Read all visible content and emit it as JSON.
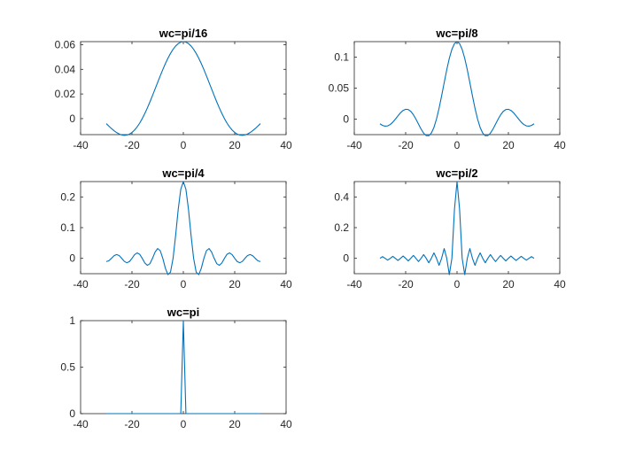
{
  "figure": {
    "background": "#ffffff",
    "line_color": "#0072bd",
    "axis_color": "#262626"
  },
  "chart_data": [
    {
      "type": "line",
      "title": "wc=pi/16",
      "xlabel": "",
      "ylabel": "",
      "xlim": [
        -40,
        40
      ],
      "ylim": [
        -0.013,
        0.0625
      ],
      "xticks": [
        -40,
        -20,
        0,
        20,
        40
      ],
      "xtick_labels": [
        "-40",
        "-20",
        "0",
        "20",
        "40"
      ],
      "yticks": [
        0,
        0.02,
        0.04,
        0.06
      ],
      "ytick_labels": [
        "0",
        "0.02",
        "0.04",
        "0.06"
      ],
      "grid": false,
      "series": [
        {
          "wc_over_pi": 0.0625,
          "x_range": [
            -30,
            30
          ],
          "x_step": 1,
          "color": "#0072bd"
        }
      ]
    },
    {
      "type": "line",
      "title": "wc=pi/8",
      "xlabel": "",
      "ylabel": "",
      "xlim": [
        -40,
        40
      ],
      "ylim": [
        -0.025,
        0.125
      ],
      "xticks": [
        -40,
        -20,
        0,
        20,
        40
      ],
      "xtick_labels": [
        "-40",
        "-20",
        "0",
        "20",
        "40"
      ],
      "yticks": [
        0,
        0.05,
        0.1
      ],
      "ytick_labels": [
        "0",
        "0.05",
        "0.1"
      ],
      "grid": false,
      "series": [
        {
          "wc_over_pi": 0.125,
          "x_range": [
            -30,
            30
          ],
          "x_step": 1,
          "color": "#0072bd"
        }
      ]
    },
    {
      "type": "line",
      "title": "wc=pi/4",
      "xlabel": "",
      "ylabel": "",
      "xlim": [
        -40,
        40
      ],
      "ylim": [
        -0.05,
        0.25
      ],
      "xticks": [
        -40,
        -20,
        0,
        20,
        40
      ],
      "xtick_labels": [
        "-40",
        "-20",
        "0",
        "20",
        "40"
      ],
      "yticks": [
        0,
        0.1,
        0.2
      ],
      "ytick_labels": [
        "0",
        "0.1",
        "0.2"
      ],
      "grid": false,
      "series": [
        {
          "wc_over_pi": 0.25,
          "x_range": [
            -30,
            30
          ],
          "x_step": 1,
          "color": "#0072bd"
        }
      ]
    },
    {
      "type": "line",
      "title": "wc=pi/2",
      "xlabel": "",
      "ylabel": "",
      "xlim": [
        -40,
        40
      ],
      "ylim": [
        -0.1,
        0.5
      ],
      "xticks": [
        -40,
        -20,
        0,
        20,
        40
      ],
      "xtick_labels": [
        "-40",
        "-20",
        "0",
        "20",
        "40"
      ],
      "yticks": [
        0,
        0.2,
        0.4
      ],
      "ytick_labels": [
        "0",
        "0.2",
        "0.4"
      ],
      "grid": false,
      "series": [
        {
          "wc_over_pi": 0.5,
          "x_range": [
            -30,
            30
          ],
          "x_step": 1,
          "color": "#0072bd"
        }
      ]
    },
    {
      "type": "line",
      "title": "wc=pi",
      "xlabel": "",
      "ylabel": "",
      "xlim": [
        -40,
        40
      ],
      "ylim": [
        0,
        1
      ],
      "xticks": [
        -40,
        -20,
        0,
        20,
        40
      ],
      "xtick_labels": [
        "-40",
        "-20",
        "0",
        "20",
        "40"
      ],
      "yticks": [
        0,
        0.5,
        1
      ],
      "ytick_labels": [
        "0",
        "0.5",
        "1"
      ],
      "grid": false,
      "series": [
        {
          "wc_over_pi": 1,
          "x_range": [
            -30,
            30
          ],
          "x_step": 1,
          "color": "#0072bd"
        }
      ]
    }
  ]
}
